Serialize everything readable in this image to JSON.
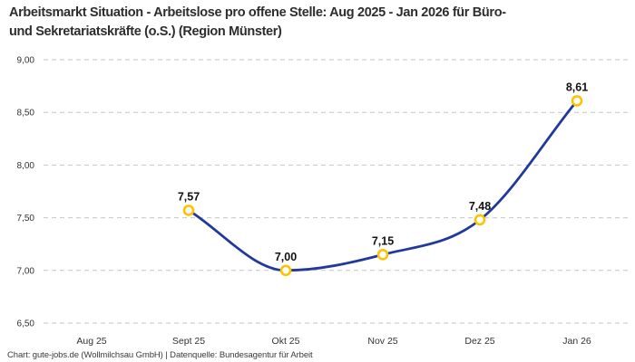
{
  "title": {
    "line1": "Arbeitsmarkt Situation - Arbeitslose pro offene Stelle: Aug 2025 - Jan 2026 für Büro-",
    "line2": "und Sekretariatskräfte (o.S.) (Region Münster)"
  },
  "footer": {
    "text": "Chart: gute-jobs.de (Wollmilchsau GmbH) | Datenquelle: Bundesagentur für Arbeit"
  },
  "chart_data": {
    "type": "line",
    "title": "Arbeitsmarkt Situation - Arbeitslose pro offene Stelle: Aug 2025 - Jan 2026 für Büro- und Sekretariatskräfte (o.S.) (Region Münster)",
    "categories": [
      "Aug 25",
      "Sept 25",
      "Okt 25",
      "Nov 25",
      "Dez 25",
      "Jan 26"
    ],
    "series": [
      {
        "name": "Arbeitslose pro offene Stelle",
        "values": [
          null,
          7.57,
          7.0,
          7.15,
          7.48,
          8.61
        ],
        "value_labels": [
          null,
          "7,57",
          "7,00",
          "7,15",
          "7,48",
          "8,61"
        ]
      }
    ],
    "ylim": [
      6.5,
      9.0
    ],
    "y_ticks": [
      9.0,
      8.5,
      8.0,
      7.5,
      7.0,
      6.5
    ],
    "y_tick_labels": [
      "9,00",
      "8,50",
      "8,00",
      "7,50",
      "7,00",
      "6,50"
    ],
    "grid": "dashed-horizontal",
    "legend": "none",
    "line_style": "smooth-monotone",
    "colors": {
      "line": "#21399c",
      "marker_ring": "#fdc300",
      "marker_fill": "#ffffff",
      "grid": "#c6c6c6",
      "title": "#2d2d2d",
      "axis_text": "#333333",
      "data_label": "#121212"
    }
  }
}
